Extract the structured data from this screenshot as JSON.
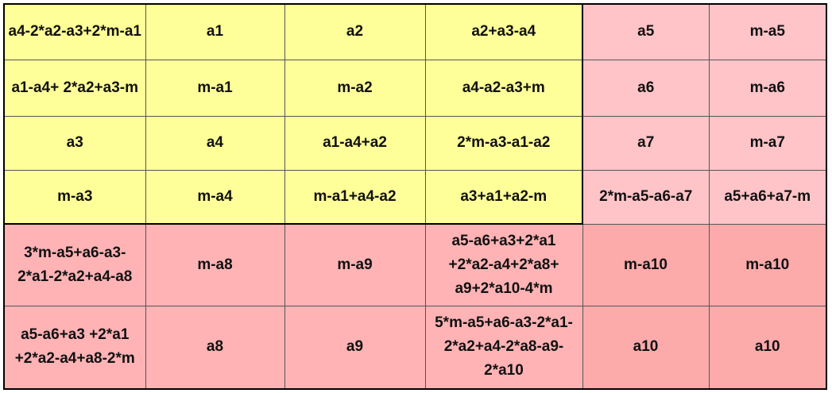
{
  "table": {
    "rows": [
      [
        "a4-2*a2-a3+2*m-a1",
        "a1",
        "a2",
        "a2+a3-a4",
        "a5",
        "m-a5"
      ],
      [
        "a1-a4+ 2*a2+a3-m",
        "m-a1",
        "m-a2",
        "a4-a2-a3+m",
        "a6",
        "m-a6"
      ],
      [
        "a3",
        "a4",
        "a1-a4+a2",
        "2*m-a3-a1-a2",
        "a7",
        "m-a7"
      ],
      [
        "m-a3",
        "m-a4",
        "m-a1+a4-a2",
        "a3+a1+a2-m",
        "2*m-a5-a6-a7",
        "a5+a6+a7-m"
      ],
      [
        "3*m-a5+a6-a3-2*a1-2*a2+a4-a8",
        "m-a8",
        "m-a9",
        "a5-a6+a3+2*a1 +2*a2-a4+2*a8+ a9+2*a10-4*m",
        "m-a10",
        "m-a10"
      ],
      [
        "a5-a6+a3 +2*a1 +2*a2-a4+a8-2*m",
        "a8",
        "a9",
        "5*m-a5+a6-a3-2*a1-2*a2+a4-2*a8-a9-2*a10",
        "a10",
        "a10"
      ]
    ]
  }
}
